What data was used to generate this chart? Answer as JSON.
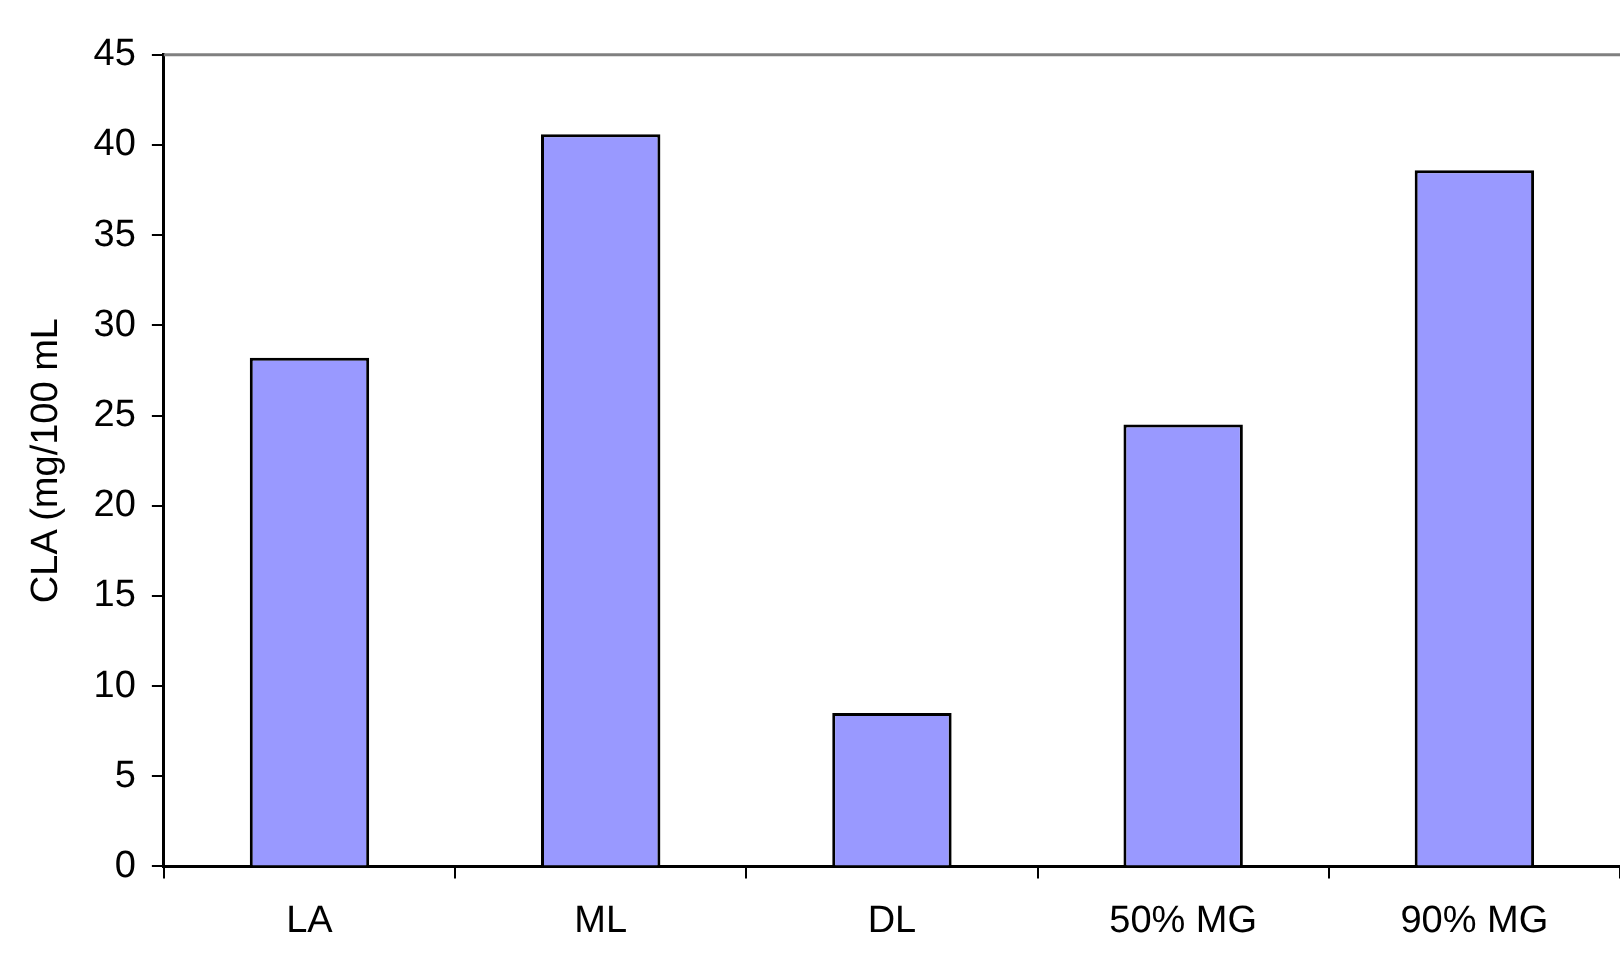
{
  "chart_data": {
    "type": "bar",
    "ylabel": "CLA (mg/100 mL",
    "categories": [
      "LA",
      "ML",
      "DL",
      "50% MG",
      "90% MG"
    ],
    "values": [
      28.2,
      40.6,
      8.5,
      24.5,
      38.6
    ],
    "color": "#9999ff",
    "ylim": [
      0,
      45
    ],
    "yticks": [
      0,
      5,
      10,
      15,
      20,
      25,
      30,
      35,
      40,
      45
    ],
    "grid": false,
    "legend": false
  }
}
